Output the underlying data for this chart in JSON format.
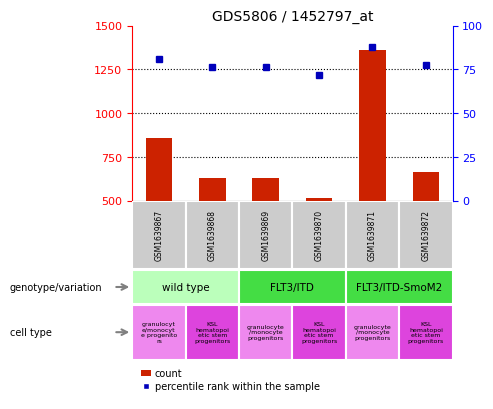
{
  "title": "GDS5806 / 1452797_at",
  "samples": [
    "GSM1639867",
    "GSM1639868",
    "GSM1639869",
    "GSM1639870",
    "GSM1639871",
    "GSM1639872"
  ],
  "counts": [
    860,
    630,
    630,
    515,
    1360,
    665
  ],
  "percentiles": [
    1310,
    1265,
    1265,
    1215,
    1380,
    1275
  ],
  "ylim_left": [
    500,
    1500
  ],
  "ylim_right": [
    0,
    100
  ],
  "yticks_left": [
    500,
    750,
    1000,
    1250,
    1500
  ],
  "yticks_right": [
    0,
    25,
    50,
    75,
    100
  ],
  "bar_color": "#cc2200",
  "dot_color": "#0000bb",
  "grid_lines": [
    750,
    1000,
    1250
  ],
  "geno_groups": [
    {
      "label": "wild type",
      "cols": [
        0,
        1
      ],
      "color": "#bbffbb"
    },
    {
      "label": "FLT3/ITD",
      "cols": [
        2,
        3
      ],
      "color": "#44dd44"
    },
    {
      "label": "FLT3/ITD-SmoM2",
      "cols": [
        4,
        5
      ],
      "color": "#44dd44"
    }
  ],
  "cell_labels": [
    "granulocyt\ne/monocyt\ne progenito\nrs",
    "KSL\nhematopoi\netic stem\nprogenitors",
    "granulocyte\n/monocyte\nprogenitors",
    "KSL\nhematopoi\netic stem\nprogenitors",
    "granulocyte\n/monocyte\nprogenitors",
    "KSL\nhematopoi\netic stem\nprogenitors"
  ],
  "cell_colors": [
    "#ee88ee",
    "#dd44dd",
    "#ee88ee",
    "#dd44dd",
    "#ee88ee",
    "#dd44dd"
  ],
  "sample_box_color": "#cccccc",
  "legend_count_label": "count",
  "legend_percentile_label": "percentile rank within the sample",
  "xlabel_genotype": "genotype/variation",
  "xlabel_celltype": "cell type"
}
